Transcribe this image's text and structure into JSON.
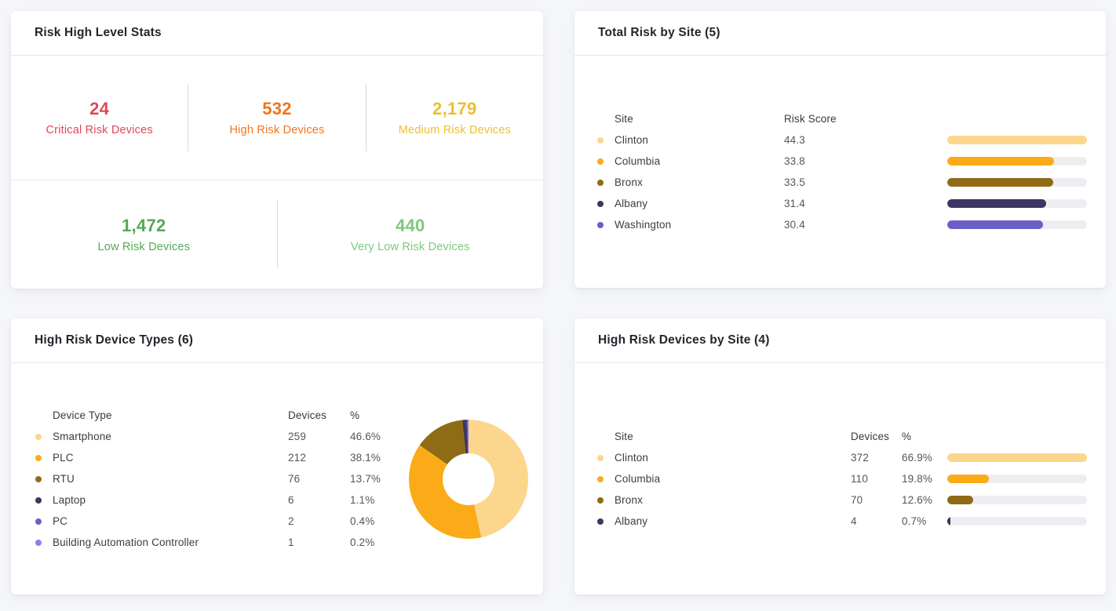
{
  "palette": {
    "series": [
      "#FCD68C",
      "#FBAB18",
      "#8F6B16",
      "#3D3663",
      "#6A5FC9",
      "#8F7FE8"
    ],
    "bar_track": "#EFEDF2",
    "stat_colors": [
      "#DC4A55",
      "#F0751D",
      "#ECBF31",
      "#55A85A",
      "#7EC87F"
    ]
  },
  "cards": {
    "risk_stats": {
      "title": "Risk High Level Stats",
      "rows": [
        [
          {
            "value": "24",
            "label": "Critical Risk Devices",
            "color": "#DC4A55"
          },
          {
            "value": "532",
            "label": "High Risk Devices",
            "color": "#F0751D"
          },
          {
            "value": "2,179",
            "label": "Medium Risk Devices",
            "color": "#ECBF31"
          }
        ],
        [
          {
            "value": "1,472",
            "label": "Low Risk Devices",
            "color": "#55A85A"
          },
          {
            "value": "440",
            "label": "Very Low Risk Devices",
            "color": "#7EC87F"
          }
        ]
      ]
    },
    "total_risk_by_site": {
      "title": "Total Risk by Site (5)",
      "columns": [
        "Site",
        "Risk Score"
      ],
      "rows": [
        {
          "site": "Clinton",
          "score": "44.3",
          "score_num": 44.3,
          "color": "#FCD68C"
        },
        {
          "site": "Columbia",
          "score": "33.8",
          "score_num": 33.8,
          "color": "#FBAB18"
        },
        {
          "site": "Bronx",
          "score": "33.5",
          "score_num": 33.5,
          "color": "#8F6B16"
        },
        {
          "site": "Albany",
          "score": "31.4",
          "score_num": 31.4,
          "color": "#3D3663"
        },
        {
          "site": "Washington",
          "score": "30.4",
          "score_num": 30.4,
          "color": "#6A5FC9"
        }
      ]
    },
    "high_risk_device_types": {
      "title": "High Risk Device Types (6)",
      "columns": [
        "Device Type",
        "Devices",
        "%"
      ],
      "rows": [
        {
          "type": "Smartphone",
          "devices": "259",
          "devices_num": 259,
          "pct": "46.6%",
          "color": "#FCD68C"
        },
        {
          "type": "PLC",
          "devices": "212",
          "devices_num": 212,
          "pct": "38.1%",
          "color": "#FBAB18"
        },
        {
          "type": "RTU",
          "devices": "76",
          "devices_num": 76,
          "pct": "13.7%",
          "color": "#8F6B16"
        },
        {
          "type": "Laptop",
          "devices": "6",
          "devices_num": 6,
          "pct": "1.1%",
          "color": "#3D3663"
        },
        {
          "type": "PC",
          "devices": "2",
          "devices_num": 2,
          "pct": "0.4%",
          "color": "#6A5FC9"
        },
        {
          "type": "Building Automation Controller",
          "devices": "1",
          "devices_num": 1,
          "pct": "0.2%",
          "color": "#8F7FE8"
        }
      ]
    },
    "high_risk_devices_by_site": {
      "title": "High Risk Devices by Site (4)",
      "columns": [
        "Site",
        "Devices",
        "%"
      ],
      "rows": [
        {
          "site": "Clinton",
          "devices": "372",
          "devices_num": 372,
          "pct": "66.9%",
          "color": "#FCD68C"
        },
        {
          "site": "Columbia",
          "devices": "110",
          "devices_num": 110,
          "pct": "19.8%",
          "color": "#FBAB18"
        },
        {
          "site": "Bronx",
          "devices": "70",
          "devices_num": 70,
          "pct": "12.6%",
          "color": "#8F6B16"
        },
        {
          "site": "Albany",
          "devices": "4",
          "devices_num": 4,
          "pct": "0.7%",
          "color": "#3D3663"
        }
      ]
    }
  },
  "chart_data": [
    {
      "type": "table",
      "title": "Risk High Level Stats",
      "categories": [
        "Critical Risk Devices",
        "High Risk Devices",
        "Medium Risk Devices",
        "Low Risk Devices",
        "Very Low Risk Devices"
      ],
      "values": [
        24,
        532,
        2179,
        1472,
        440
      ]
    },
    {
      "type": "bar",
      "title": "Total Risk by Site (5)",
      "orientation": "horizontal",
      "categories": [
        "Clinton",
        "Columbia",
        "Bronx",
        "Albany",
        "Washington"
      ],
      "values": [
        44.3,
        33.8,
        33.5,
        31.4,
        30.4
      ],
      "xlabel": "Risk Score",
      "xlim": [
        0,
        44.3
      ],
      "grid": false,
      "legend_position": "left-dots"
    },
    {
      "type": "pie",
      "title": "High Risk Device Types (6)",
      "donut": true,
      "categories": [
        "Smartphone",
        "PLC",
        "RTU",
        "Laptop",
        "PC",
        "Building Automation Controller"
      ],
      "values": [
        259,
        212,
        76,
        6,
        2,
        1
      ],
      "percent_labels": [
        46.6,
        38.1,
        13.7,
        1.1,
        0.4,
        0.2
      ],
      "legend_position": "left-table"
    },
    {
      "type": "bar",
      "title": "High Risk Devices by Site (4)",
      "orientation": "horizontal",
      "categories": [
        "Clinton",
        "Columbia",
        "Bronx",
        "Albany"
      ],
      "values": [
        372,
        110,
        70,
        4
      ],
      "percent_labels": [
        66.9,
        19.8,
        12.6,
        0.7
      ],
      "xlim": [
        0,
        372
      ],
      "grid": false,
      "legend_position": "left-dots"
    }
  ]
}
